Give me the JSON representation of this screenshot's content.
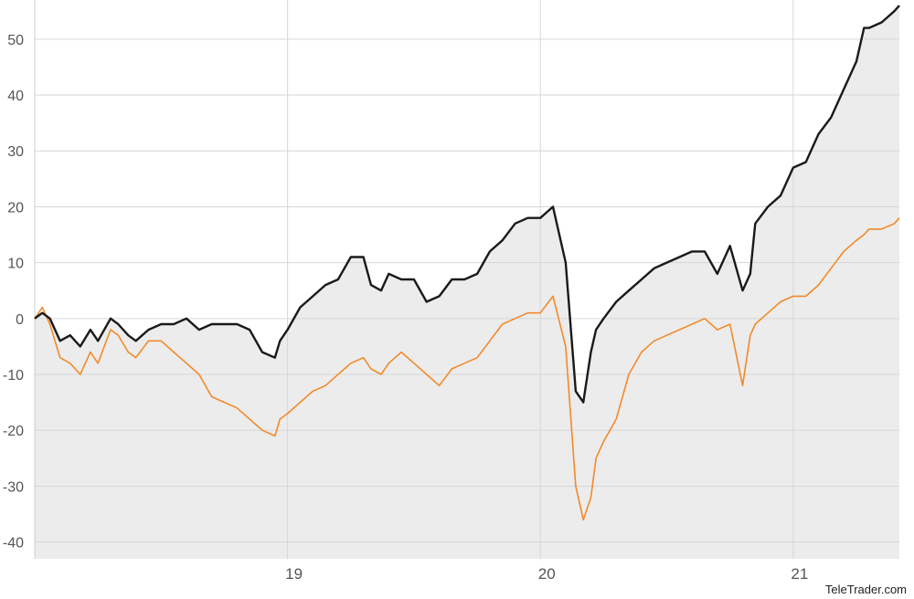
{
  "colors": {
    "background": "#ffffff",
    "plot_fill": "#ececec",
    "grid": "#d6d6d6",
    "series_primary": "#1a1a1a",
    "series_secondary": "#f28a2a"
  },
  "credit": "TeleTrader.com",
  "chart_data": {
    "type": "line",
    "xlim": [
      2018.0,
      2021.42
    ],
    "ylim": [
      -43,
      57
    ],
    "y_ticks": [
      50,
      40,
      30,
      20,
      10,
      0,
      -10,
      -20,
      -30,
      -40
    ],
    "y_tick_labels": [
      "50",
      "40",
      "30",
      "20",
      "10",
      "0",
      "-10",
      "-20",
      "-30",
      "-40"
    ],
    "x_ticks": [
      2019,
      2020,
      2021
    ],
    "x_tick_labels": [
      "19",
      "20",
      "21"
    ],
    "grid": true,
    "area_fill_under": "series_primary",
    "series": [
      {
        "color": "#1a1a1a",
        "x": [
          2018.0,
          2018.03,
          2018.06,
          2018.1,
          2018.14,
          2018.18,
          2018.22,
          2018.25,
          2018.3,
          2018.33,
          2018.37,
          2018.4,
          2018.45,
          2018.5,
          2018.55,
          2018.6,
          2018.65,
          2018.7,
          2018.75,
          2018.8,
          2018.85,
          2018.9,
          2018.95,
          2018.97,
          2019.0,
          2019.05,
          2019.1,
          2019.15,
          2019.2,
          2019.25,
          2019.3,
          2019.33,
          2019.37,
          2019.4,
          2019.45,
          2019.5,
          2019.55,
          2019.6,
          2019.65,
          2019.7,
          2019.75,
          2019.8,
          2019.85,
          2019.9,
          2019.95,
          2020.0,
          2020.05,
          2020.1,
          2020.14,
          2020.17,
          2020.2,
          2020.22,
          2020.25,
          2020.3,
          2020.35,
          2020.4,
          2020.45,
          2020.5,
          2020.55,
          2020.6,
          2020.65,
          2020.7,
          2020.75,
          2020.8,
          2020.83,
          2020.85,
          2020.9,
          2020.95,
          2021.0,
          2021.05,
          2021.1,
          2021.15,
          2021.2,
          2021.25,
          2021.28,
          2021.3,
          2021.35,
          2021.4,
          2021.42
        ],
        "y": [
          0,
          1,
          0,
          -4,
          -3,
          -5,
          -2,
          -4,
          0,
          -1,
          -3,
          -4,
          -2,
          -1,
          -1,
          0,
          -2,
          -1,
          -1,
          -1,
          -2,
          -6,
          -7,
          -4,
          -2,
          2,
          4,
          6,
          7,
          11,
          11,
          6,
          5,
          8,
          7,
          7,
          3,
          4,
          7,
          7,
          8,
          12,
          14,
          17,
          18,
          18,
          20,
          10,
          -13,
          -15,
          -6,
          -2,
          0,
          3,
          5,
          7,
          9,
          10,
          11,
          12,
          12,
          8,
          13,
          5,
          8,
          17,
          20,
          22,
          27,
          28,
          33,
          36,
          41,
          46,
          52,
          52,
          53,
          55,
          56
        ]
      },
      {
        "color": "#f28a2a",
        "x": [
          2018.0,
          2018.03,
          2018.06,
          2018.1,
          2018.14,
          2018.18,
          2018.22,
          2018.25,
          2018.3,
          2018.33,
          2018.37,
          2018.4,
          2018.45,
          2018.5,
          2018.55,
          2018.6,
          2018.65,
          2018.7,
          2018.75,
          2018.8,
          2018.85,
          2018.9,
          2018.95,
          2018.97,
          2019.0,
          2019.05,
          2019.1,
          2019.15,
          2019.2,
          2019.25,
          2019.3,
          2019.33,
          2019.37,
          2019.4,
          2019.45,
          2019.5,
          2019.55,
          2019.6,
          2019.65,
          2019.7,
          2019.75,
          2019.8,
          2019.85,
          2019.9,
          2019.95,
          2020.0,
          2020.05,
          2020.1,
          2020.14,
          2020.17,
          2020.2,
          2020.22,
          2020.25,
          2020.3,
          2020.35,
          2020.4,
          2020.45,
          2020.5,
          2020.55,
          2020.6,
          2020.65,
          2020.7,
          2020.75,
          2020.8,
          2020.83,
          2020.85,
          2020.9,
          2020.95,
          2021.0,
          2021.05,
          2021.1,
          2021.15,
          2021.2,
          2021.25,
          2021.28,
          2021.3,
          2021.35,
          2021.4,
          2021.42
        ],
        "y": [
          0,
          2,
          -1,
          -7,
          -8,
          -10,
          -6,
          -8,
          -2,
          -3,
          -6,
          -7,
          -4,
          -4,
          -6,
          -8,
          -10,
          -14,
          -15,
          -16,
          -18,
          -20,
          -21,
          -18,
          -17,
          -15,
          -13,
          -12,
          -10,
          -8,
          -7,
          -9,
          -10,
          -8,
          -6,
          -8,
          -10,
          -12,
          -9,
          -8,
          -7,
          -4,
          -1,
          0,
          1,
          1,
          4,
          -5,
          -30,
          -36,
          -32,
          -25,
          -22,
          -18,
          -10,
          -6,
          -4,
          -3,
          -2,
          -1,
          0,
          -2,
          -1,
          -12,
          -3,
          -1,
          1,
          3,
          4,
          4,
          6,
          9,
          12,
          14,
          15,
          16,
          16,
          17,
          18
        ]
      }
    ]
  }
}
